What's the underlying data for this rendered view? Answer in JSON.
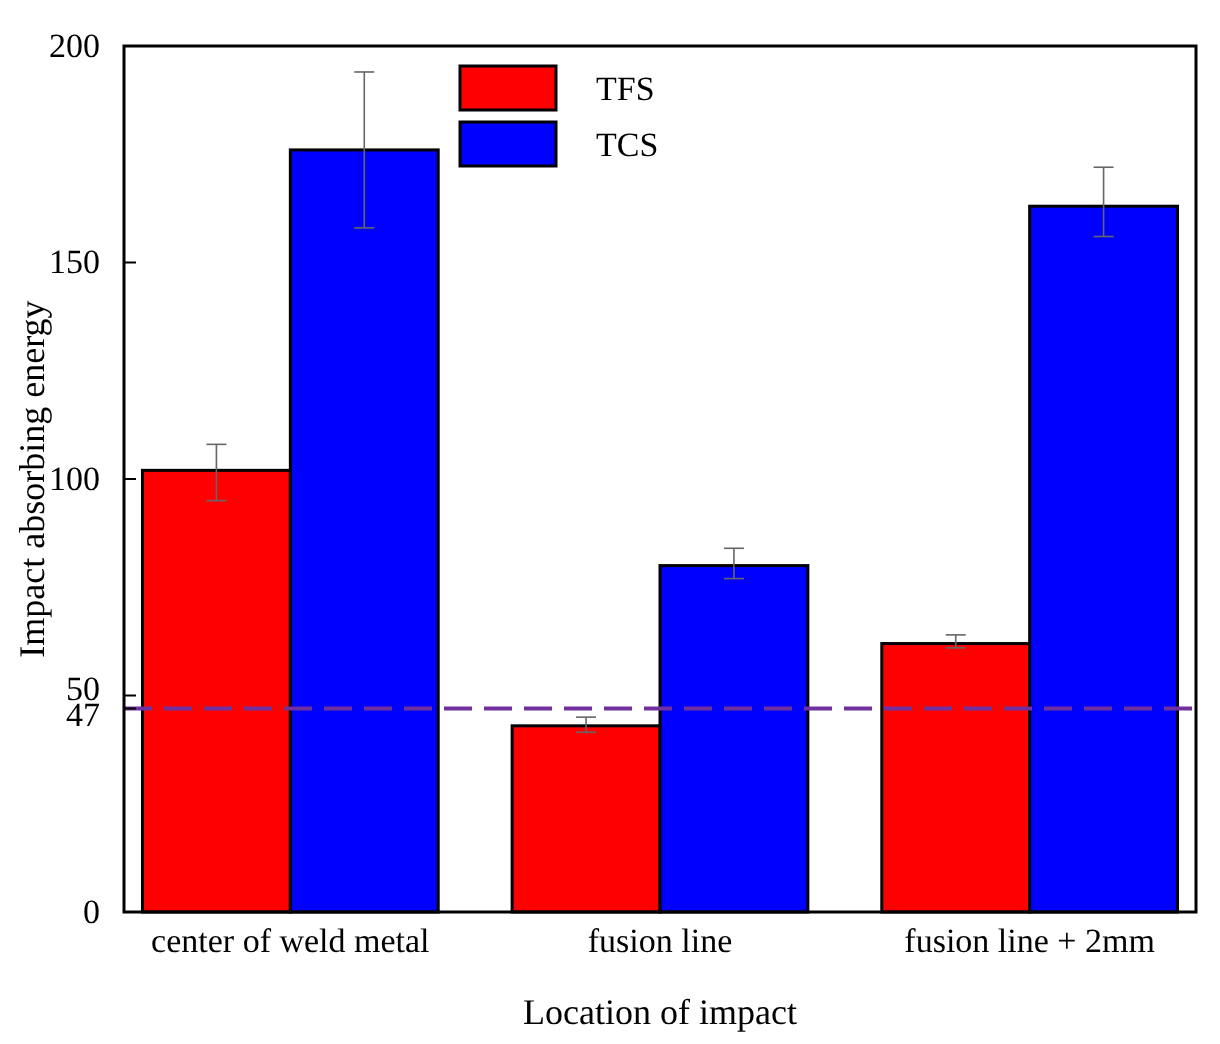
{
  "chart_data": {
    "type": "bar",
    "xlabel": "Location of impact",
    "ylabel": "Impact absorbing energy",
    "categories": [
      "center of weld metal",
      "fusion line",
      "fusion line + 2mm"
    ],
    "series": [
      {
        "name": "TFS",
        "color": "#ff0000",
        "values": [
          102,
          43,
          62
        ],
        "errors": [
          [
            95,
            108
          ],
          [
            41.5,
            45
          ],
          [
            61,
            64
          ]
        ]
      },
      {
        "name": "TCS",
        "color": "#0000ff",
        "values": [
          176,
          80,
          163
        ],
        "errors": [
          [
            158,
            194
          ],
          [
            77,
            84
          ],
          [
            156,
            172
          ]
        ]
      }
    ],
    "ylim": [
      0,
      200
    ],
    "yticks": [
      0,
      47,
      50,
      100,
      150,
      200
    ],
    "ref_lines": [
      {
        "axis": "y",
        "value": 47,
        "color": "#7030a0",
        "line_style": "dashed"
      }
    ],
    "legend": "top"
  }
}
